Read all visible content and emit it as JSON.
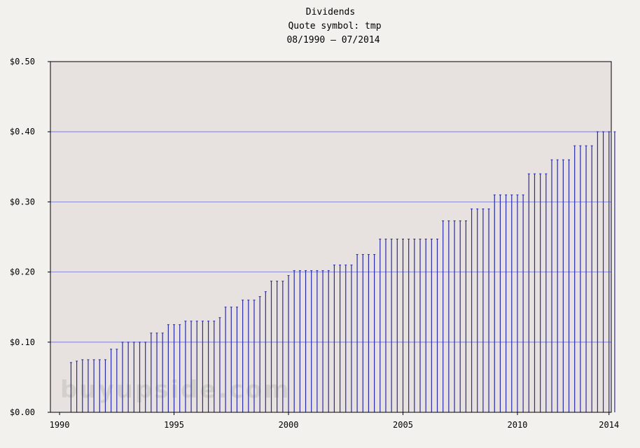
{
  "chart_data": {
    "type": "bar",
    "title": "Dividends",
    "subtitle": "Quote symbol: tmp",
    "date_range": "08/1990 – 07/2014",
    "watermark": "buyupside.com",
    "xlabel": "",
    "ylabel": "",
    "ylim": [
      0,
      0.5
    ],
    "xlim": [
      1989.6,
      2014.1
    ],
    "y_ticks": [
      {
        "value": 0.0,
        "label": "$0.00"
      },
      {
        "value": 0.1,
        "label": "$0.10"
      },
      {
        "value": 0.2,
        "label": "$0.20"
      },
      {
        "value": 0.3,
        "label": "$0.30"
      },
      {
        "value": 0.4,
        "label": "$0.40"
      },
      {
        "value": 0.5,
        "label": "$0.50"
      }
    ],
    "x_ticks": [
      {
        "value": 1990,
        "label": "1990"
      },
      {
        "value": 1995,
        "label": "1995"
      },
      {
        "value": 2000,
        "label": "2000"
      },
      {
        "value": 2005,
        "label": "2005"
      },
      {
        "value": 2010,
        "label": "2010"
      },
      {
        "value": 2014,
        "label": "2014"
      }
    ],
    "grid": "horizontal",
    "colors": {
      "bars": "#2a2aa6",
      "gridlines": "#6e6ed2",
      "plot_background": "#e7e2df",
      "page_background": "#f3f1ee"
    },
    "x": [
      1990.5,
      1990.75,
      1991.0,
      1991.25,
      1991.5,
      1991.75,
      1992.0,
      1992.25,
      1992.5,
      1992.75,
      1993.0,
      1993.25,
      1993.5,
      1993.75,
      1994.0,
      1994.25,
      1994.5,
      1994.75,
      1995.0,
      1995.25,
      1995.5,
      1995.75,
      1996.0,
      1996.25,
      1996.5,
      1996.75,
      1997.0,
      1997.25,
      1997.5,
      1997.75,
      1998.0,
      1998.25,
      1998.5,
      1998.75,
      1999.0,
      1999.25,
      1999.5,
      1999.75,
      2000.0,
      2000.25,
      2000.5,
      2000.75,
      2001.0,
      2001.25,
      2001.5,
      2001.75,
      2002.0,
      2002.25,
      2002.5,
      2002.75,
      2003.0,
      2003.25,
      2003.5,
      2003.75,
      2004.0,
      2004.25,
      2004.5,
      2004.75,
      2005.0,
      2005.25,
      2005.5,
      2005.75,
      2006.0,
      2006.25,
      2006.5,
      2006.75,
      2007.0,
      2007.25,
      2007.5,
      2007.75,
      2008.0,
      2008.25,
      2008.5,
      2008.75,
      2009.0,
      2009.25,
      2009.5,
      2009.75,
      2010.0,
      2010.25,
      2010.5,
      2010.75,
      2011.0,
      2011.25,
      2011.5,
      2011.75,
      2012.0,
      2012.25,
      2012.5,
      2012.75,
      2013.0,
      2013.25,
      2013.5,
      2013.75,
      2014.0,
      2014.25
    ],
    "values": [
      0.071,
      0.073,
      0.075,
      0.075,
      0.075,
      0.075,
      0.075,
      0.09,
      0.09,
      0.1,
      0.1,
      0.1,
      0.1,
      0.1,
      0.113,
      0.113,
      0.113,
      0.125,
      0.125,
      0.125,
      0.13,
      0.13,
      0.13,
      0.13,
      0.13,
      0.13,
      0.135,
      0.15,
      0.15,
      0.15,
      0.16,
      0.16,
      0.16,
      0.165,
      0.172,
      0.187,
      0.187,
      0.187,
      0.195,
      0.202,
      0.202,
      0.202,
      0.202,
      0.202,
      0.202,
      0.202,
      0.21,
      0.21,
      0.21,
      0.21,
      0.225,
      0.225,
      0.225,
      0.225,
      0.247,
      0.247,
      0.247,
      0.247,
      0.247,
      0.247,
      0.247,
      0.247,
      0.247,
      0.247,
      0.247,
      0.273,
      0.273,
      0.273,
      0.273,
      0.273,
      0.29,
      0.29,
      0.29,
      0.29,
      0.31,
      0.31,
      0.31,
      0.31,
      0.31,
      0.31,
      0.34,
      0.34,
      0.34,
      0.34,
      0.36,
      0.36,
      0.36,
      0.36,
      0.38,
      0.38,
      0.38,
      0.38,
      0.4,
      0.4,
      0.4,
      0.4
    ]
  }
}
